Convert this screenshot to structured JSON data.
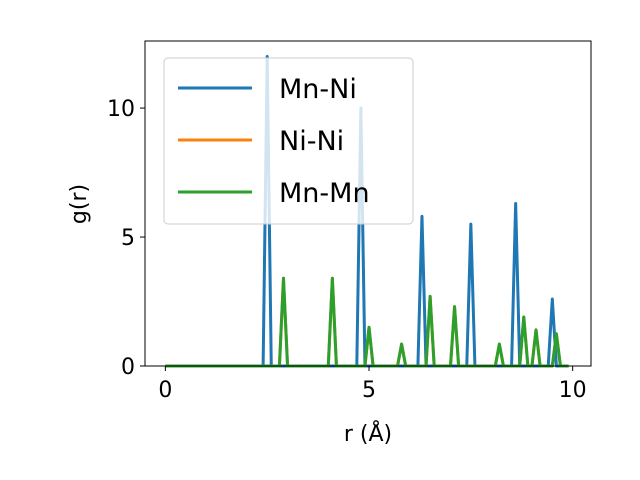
{
  "chart_data": {
    "type": "line",
    "xlabel": "r (Å)",
    "ylabel": "g(r)",
    "xlim": [
      -0.5,
      10.45
    ],
    "ylim": [
      0,
      12.6
    ],
    "xticks": [
      0,
      5,
      10
    ],
    "yticks": [
      0,
      5,
      10
    ],
    "grid": false,
    "legend_position": "top-left",
    "series": [
      {
        "name": "Mn-Ni",
        "color": "#1f77b4",
        "points": [
          [
            0,
            0
          ],
          [
            2.4,
            0
          ],
          [
            2.5,
            12.0
          ],
          [
            2.6,
            0
          ],
          [
            4.7,
            0
          ],
          [
            4.8,
            10.0
          ],
          [
            4.9,
            0
          ],
          [
            6.2,
            0
          ],
          [
            6.3,
            5.8
          ],
          [
            6.4,
            0
          ],
          [
            7.4,
            0
          ],
          [
            7.5,
            5.5
          ],
          [
            7.6,
            0
          ],
          [
            8.5,
            0
          ],
          [
            8.6,
            6.3
          ],
          [
            8.7,
            0
          ],
          [
            9.4,
            0
          ],
          [
            9.5,
            2.6
          ],
          [
            9.6,
            0
          ],
          [
            9.9,
            0
          ]
        ]
      },
      {
        "name": "Ni-Ni",
        "color": "#ff7f0e",
        "points": [
          [
            0,
            0
          ],
          [
            2.8,
            0
          ],
          [
            2.9,
            3.4
          ],
          [
            3.0,
            0
          ],
          [
            4.0,
            0
          ],
          [
            4.1,
            3.4
          ],
          [
            4.2,
            0
          ],
          [
            4.9,
            0
          ],
          [
            5.0,
            1.5
          ],
          [
            5.1,
            0
          ],
          [
            5.7,
            0
          ],
          [
            5.8,
            0.85
          ],
          [
            5.9,
            0
          ],
          [
            6.4,
            0
          ],
          [
            6.5,
            2.7
          ],
          [
            6.6,
            0
          ],
          [
            7.0,
            0
          ],
          [
            7.1,
            2.3
          ],
          [
            7.2,
            0
          ],
          [
            8.1,
            0
          ],
          [
            8.2,
            0.85
          ],
          [
            8.3,
            0
          ],
          [
            8.7,
            0
          ],
          [
            8.8,
            1.9
          ],
          [
            8.9,
            0
          ],
          [
            9.0,
            0
          ],
          [
            9.1,
            1.4
          ],
          [
            9.2,
            0
          ],
          [
            9.5,
            0
          ],
          [
            9.6,
            1.25
          ],
          [
            9.7,
            0
          ],
          [
            9.9,
            0
          ]
        ]
      },
      {
        "name": "Mn-Mn",
        "color": "#2ca02c",
        "points": [
          [
            0,
            0
          ],
          [
            2.8,
            0
          ],
          [
            2.9,
            3.4
          ],
          [
            3.0,
            0
          ],
          [
            4.0,
            0
          ],
          [
            4.1,
            3.4
          ],
          [
            4.2,
            0
          ],
          [
            4.9,
            0
          ],
          [
            5.0,
            1.5
          ],
          [
            5.1,
            0
          ],
          [
            5.7,
            0
          ],
          [
            5.8,
            0.85
          ],
          [
            5.9,
            0
          ],
          [
            6.4,
            0
          ],
          [
            6.5,
            2.7
          ],
          [
            6.6,
            0
          ],
          [
            7.0,
            0
          ],
          [
            7.1,
            2.3
          ],
          [
            7.2,
            0
          ],
          [
            8.1,
            0
          ],
          [
            8.2,
            0.85
          ],
          [
            8.3,
            0
          ],
          [
            8.7,
            0
          ],
          [
            8.8,
            1.9
          ],
          [
            8.9,
            0
          ],
          [
            9.0,
            0
          ],
          [
            9.1,
            1.4
          ],
          [
            9.2,
            0
          ],
          [
            9.5,
            0
          ],
          [
            9.6,
            1.25
          ],
          [
            9.7,
            0
          ],
          [
            9.9,
            0
          ]
        ]
      }
    ]
  }
}
